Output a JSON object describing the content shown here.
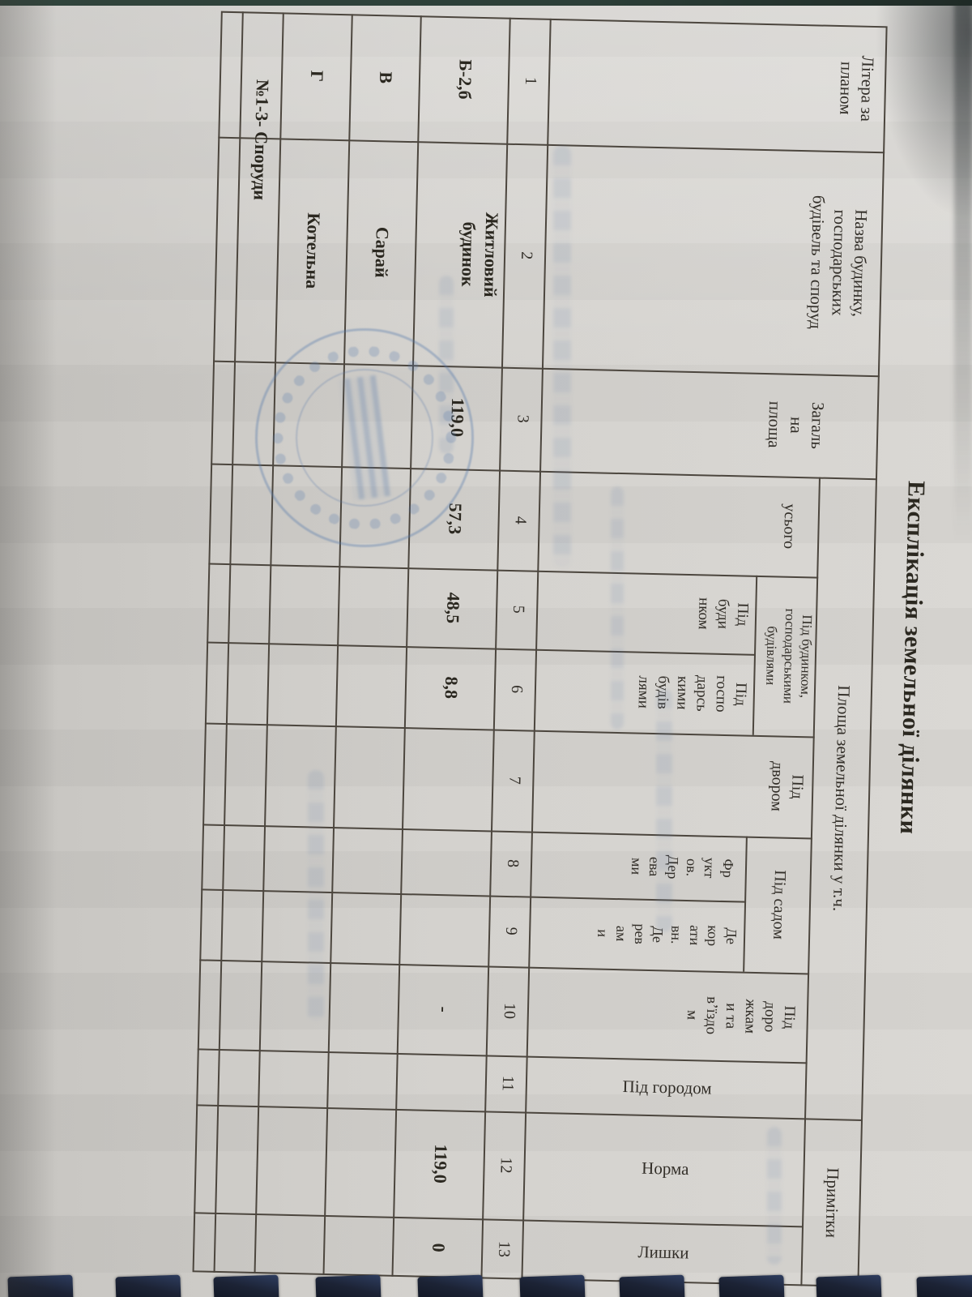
{
  "page": {
    "title": "Експлікація земельної ділянки"
  },
  "table": {
    "headers": {
      "letter": "Літера за\nпланом",
      "name": "Назва будинку,\nгосподарських\nбудівель та споруд",
      "total_area": "Загаль\nна\nплоща",
      "area_span": "Площа земельної ділянки у т.ч.",
      "notes": "Примітки",
      "total_incl": "усього",
      "house_farm_span": "Під будинком,\nгосподарськими\nбудівлями",
      "under_house": "Під\nбуди\nнком",
      "under_farm": "Під\nгоспо\nдарсь\nкими\nбудів\nлями",
      "under_yard": "Під\nдвором",
      "garden_span": "Під садом",
      "fruit_trees": "Фр\nукт\nов.\nДер\nева\nми",
      "decor_trees": "Де\nкор\nати\nвн.\nДе\nрев\nам\nи",
      "roads": "Під\nдоро\nжкам\nи та\nв’їздо\nм",
      "under_garden": "Під городом",
      "norm": "Норма",
      "surplus": "Лишки"
    },
    "column_numbers": [
      "1",
      "2",
      "3",
      "4",
      "5",
      "6",
      "7",
      "8",
      "9",
      "10",
      "11",
      "12",
      "13"
    ],
    "rows": [
      {
        "letter": "Б-2,б",
        "name": "Житловий\nбудинок",
        "total_area": "119,0",
        "total_incl": "57,3",
        "under_house": "48,5",
        "under_farm": "8,8",
        "roads": "-",
        "norm": "119,0",
        "surplus": "0"
      },
      {
        "letter": "В",
        "name": "Сарай"
      },
      {
        "letter": "Г",
        "name": "Котельна"
      },
      {
        "name": "№1-3- Споруди"
      }
    ]
  }
}
